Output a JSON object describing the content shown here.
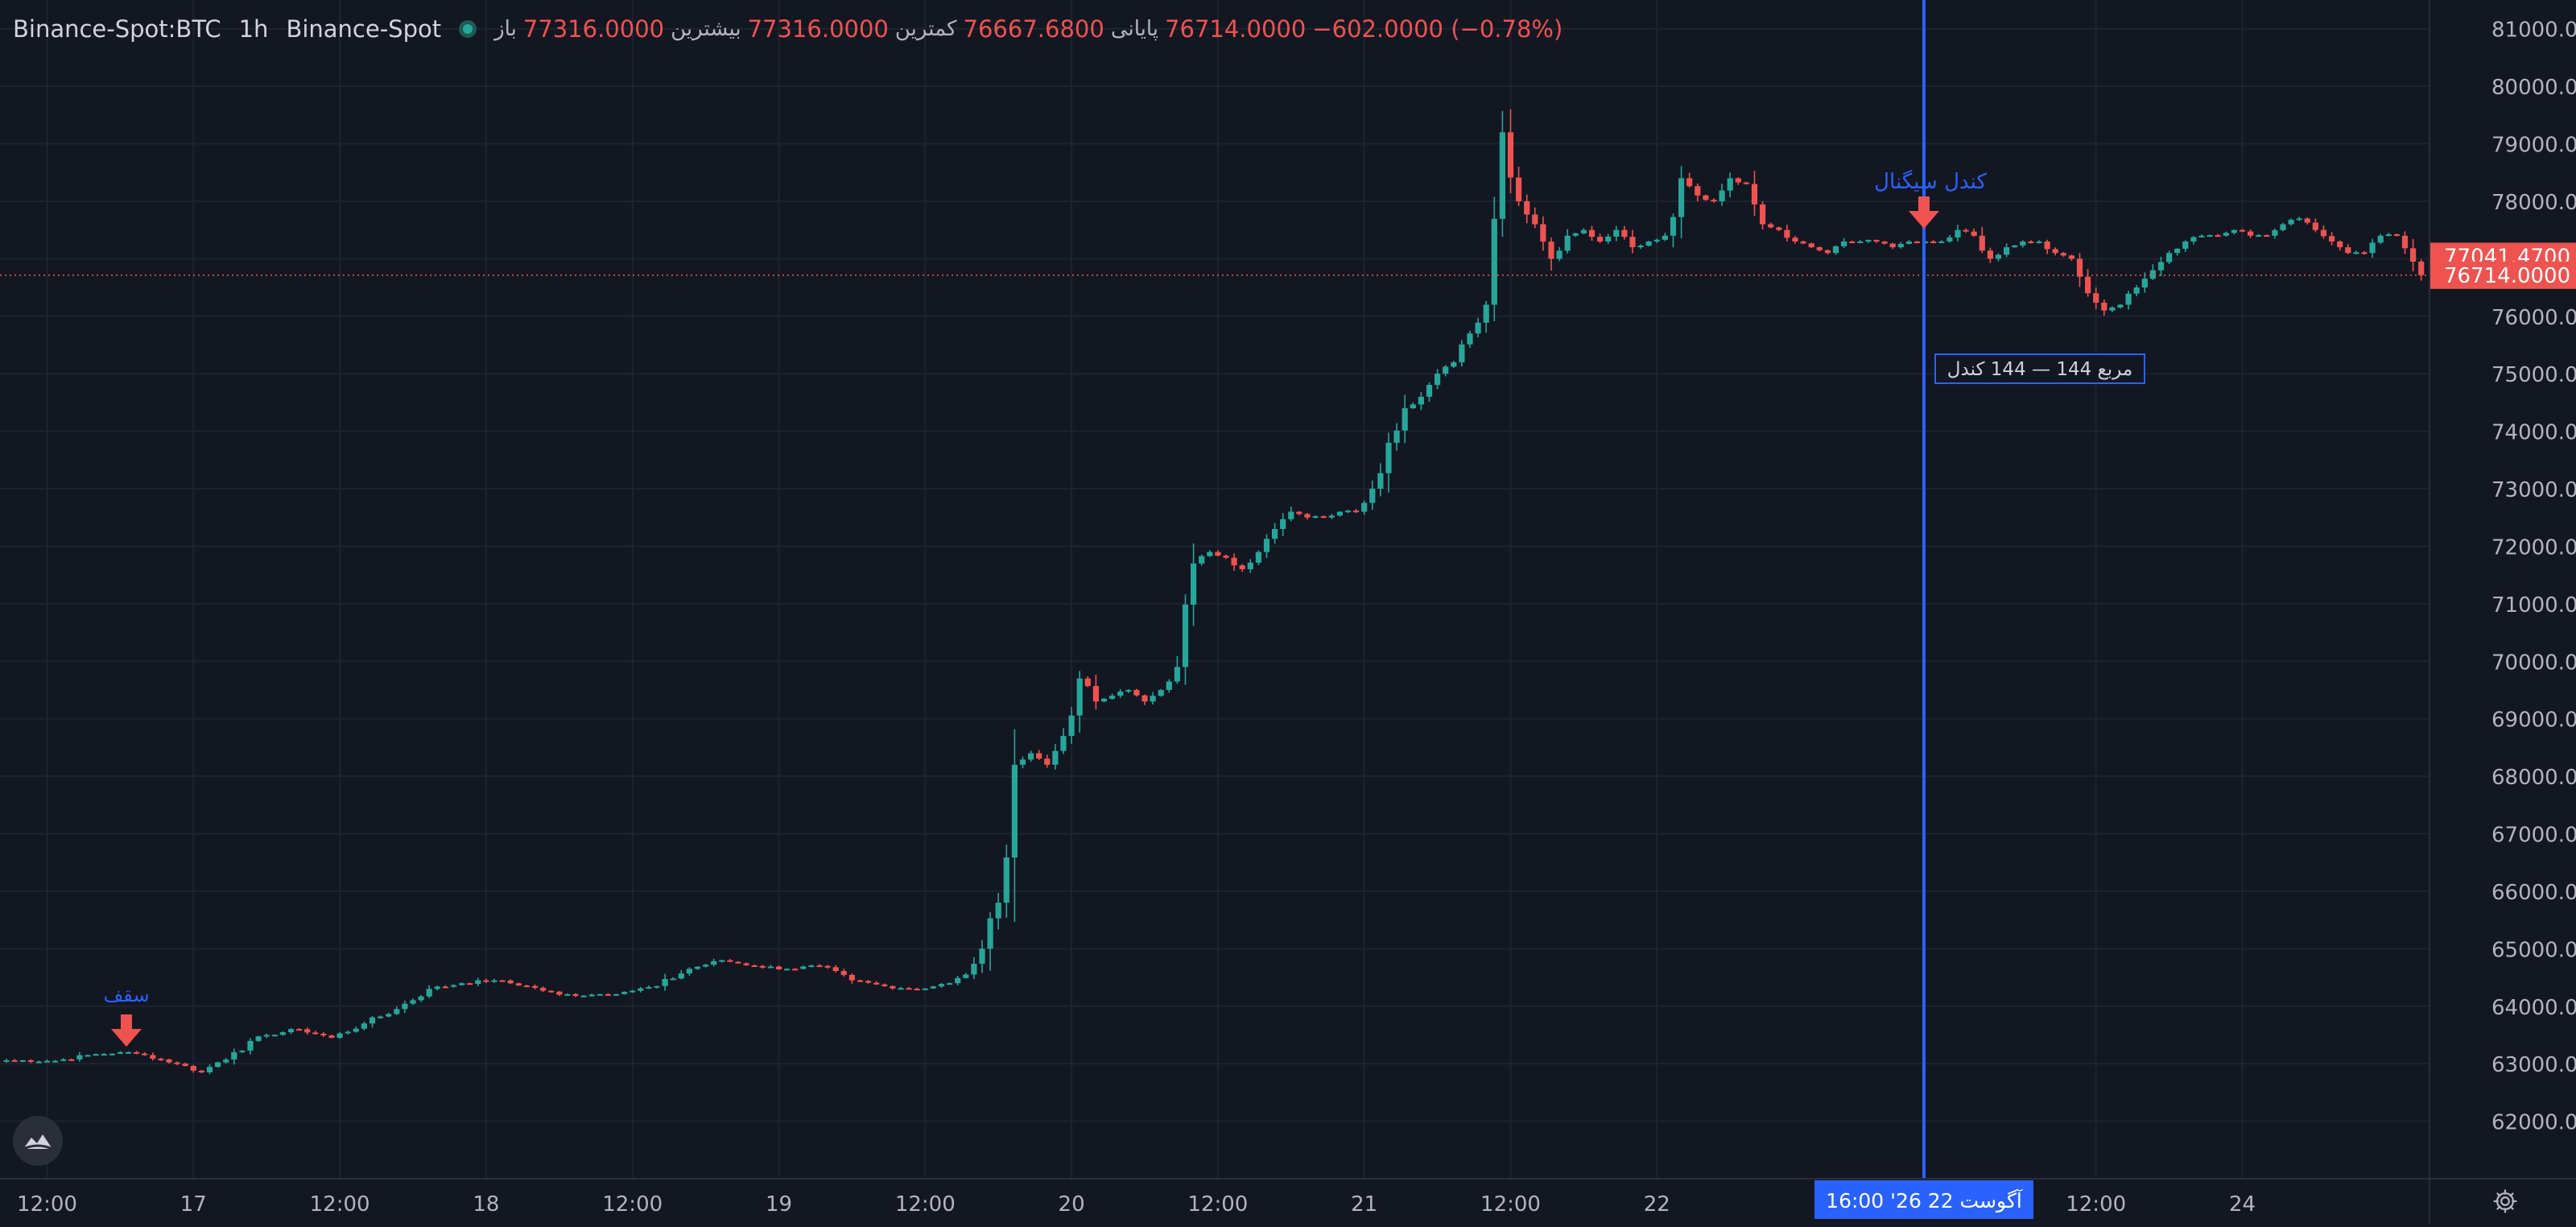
{
  "legend": {
    "symbol": "Binance-Spot:BTC",
    "interval": "1h",
    "exchange": "Binance-Spot",
    "open_label": "باز",
    "open_value": "77316.0000",
    "high_label": "بیشترین",
    "high_value": "77316.0000",
    "low_label": "کمترین",
    "low_value": "76667.6800",
    "close_label": "پایانی",
    "close_value": "76714.0000",
    "change_value": "−602.0000 (−0.78%)"
  },
  "colors": {
    "background": "#131722",
    "grid": "#1f2330",
    "up": "#26a69a",
    "down": "#ef5350",
    "crosshair": "#2962ff",
    "axis_text": "#b2b5be",
    "annotation_text": "#2962ff",
    "price_badge": "#ef5350"
  },
  "annotations": {
    "left_marker_label": "سقف",
    "right_marker_label": "کندل سیگنال",
    "box_label": "مربع 144 — 144 کندل",
    "crosshair_time_label": "16:00  '26 آگوست 22"
  },
  "icons": {
    "marker": "down-arrow-icon",
    "logo": "mountain-logo-icon",
    "settings": "gear-icon"
  },
  "chart_data": {
    "type": "candlestick",
    "title": "Binance-Spot:BTC",
    "interval": "1h",
    "ylim": [
      61000,
      81500
    ],
    "y_ticks": [
      "81000.0000",
      "80000.0000",
      "79000.0000",
      "78000.0000",
      "77000.0000",
      "76000.0000",
      "75000.0000",
      "74000.0000",
      "73000.0000",
      "72000.0000",
      "71000.0000",
      "70000.0000",
      "69000.0000",
      "68000.0000",
      "67000.0000",
      "66000.0000",
      "65000.0000",
      "64000.0000",
      "63000.0000",
      "62000.0000"
    ],
    "x_tick_labels": [
      "12:00",
      "17",
      "12:00",
      "18",
      "12:00",
      "19",
      "12:00",
      "20",
      "12:00",
      "21",
      "12:00",
      "22",
      "12:00",
      "24"
    ],
    "grid": true,
    "price_badges": [
      {
        "value": 77041.47,
        "label": "77041.4700"
      },
      {
        "value": 76714.0,
        "label": "76714.0000"
      }
    ],
    "last_price": 76714.0,
    "anchors": [
      [
        0,
        63060
      ],
      [
        6,
        63050
      ],
      [
        10,
        63150
      ],
      [
        14,
        63200
      ],
      [
        17,
        63150
      ],
      [
        21,
        63000
      ],
      [
        24,
        62850
      ],
      [
        28,
        63200
      ],
      [
        32,
        63500
      ],
      [
        36,
        63600
      ],
      [
        40,
        63450
      ],
      [
        44,
        63700
      ],
      [
        48,
        63950
      ],
      [
        52,
        64300
      ],
      [
        56,
        64400
      ],
      [
        60,
        64450
      ],
      [
        64,
        64350
      ],
      [
        68,
        64200
      ],
      [
        72,
        64200
      ],
      [
        76,
        64250
      ],
      [
        80,
        64350
      ],
      [
        84,
        64650
      ],
      [
        88,
        64800
      ],
      [
        92,
        64700
      ],
      [
        96,
        64650
      ],
      [
        100,
        64700
      ],
      [
        104,
        64450
      ],
      [
        108,
        64350
      ],
      [
        112,
        64300
      ],
      [
        116,
        64400
      ],
      [
        118,
        64550
      ],
      [
        120,
        65000
      ],
      [
        122,
        65800
      ],
      [
        124,
        68200
      ],
      [
        126,
        68400
      ],
      [
        128,
        68200
      ],
      [
        130,
        68700
      ],
      [
        132,
        69700
      ],
      [
        134,
        69300
      ],
      [
        136,
        69400
      ],
      [
        138,
        69500
      ],
      [
        140,
        69300
      ],
      [
        142,
        69500
      ],
      [
        144,
        69900
      ],
      [
        146,
        71700
      ],
      [
        148,
        71900
      ],
      [
        150,
        71800
      ],
      [
        152,
        71600
      ],
      [
        154,
        71900
      ],
      [
        156,
        72300
      ],
      [
        158,
        72600
      ],
      [
        160,
        72500
      ],
      [
        162,
        72500
      ],
      [
        164,
        72600
      ],
      [
        166,
        72600
      ],
      [
        168,
        73000
      ],
      [
        170,
        73800
      ],
      [
        172,
        74400
      ],
      [
        174,
        74600
      ],
      [
        176,
        75000
      ],
      [
        178,
        75200
      ],
      [
        180,
        75700
      ],
      [
        182,
        76200
      ],
      [
        184,
        79200
      ],
      [
        186,
        78000
      ],
      [
        188,
        77600
      ],
      [
        190,
        77000
      ],
      [
        192,
        77400
      ],
      [
        194,
        77500
      ],
      [
        196,
        77300
      ],
      [
        198,
        77500
      ],
      [
        200,
        77200
      ],
      [
        202,
        77300
      ],
      [
        204,
        77400
      ],
      [
        206,
        78400
      ],
      [
        208,
        78100
      ],
      [
        210,
        78000
      ],
      [
        212,
        78400
      ],
      [
        214,
        78300
      ],
      [
        216,
        77600
      ],
      [
        218,
        77500
      ],
      [
        220,
        77300
      ],
      [
        222,
        77200
      ],
      [
        224,
        77100
      ],
      [
        226,
        77300
      ],
      [
        228,
        77300
      ],
      [
        230,
        77300
      ],
      [
        232,
        77200
      ],
      [
        234,
        77300
      ],
      [
        236,
        77300
      ],
      [
        238,
        77300
      ],
      [
        240,
        77500
      ],
      [
        242,
        77400
      ],
      [
        244,
        77000
      ],
      [
        246,
        77200
      ],
      [
        248,
        77300
      ],
      [
        250,
        77300
      ],
      [
        252,
        77100
      ],
      [
        254,
        77000
      ],
      [
        256,
        76400
      ],
      [
        258,
        76100
      ],
      [
        260,
        76200
      ],
      [
        262,
        76500
      ],
      [
        264,
        76800
      ],
      [
        266,
        77100
      ],
      [
        268,
        77300
      ],
      [
        270,
        77400
      ],
      [
        272,
        77400
      ],
      [
        274,
        77500
      ],
      [
        276,
        77400
      ],
      [
        278,
        77400
      ],
      [
        280,
        77600
      ],
      [
        282,
        77700
      ],
      [
        284,
        77500
      ],
      [
        286,
        77300
      ],
      [
        288,
        77100
      ],
      [
        290,
        77100
      ],
      [
        292,
        77400
      ],
      [
        294,
        77400
      ],
      [
        296,
        76950
      ],
      [
        297,
        76714
      ]
    ],
    "notes": "Hourly BTC candles (Binance-Spot), ~298 bars, rising from ~63,000 to a peak ~79,400 then consolidating around 77,000. Close values are read off the axis at the listed bar indices; open values follow the previous close."
  }
}
